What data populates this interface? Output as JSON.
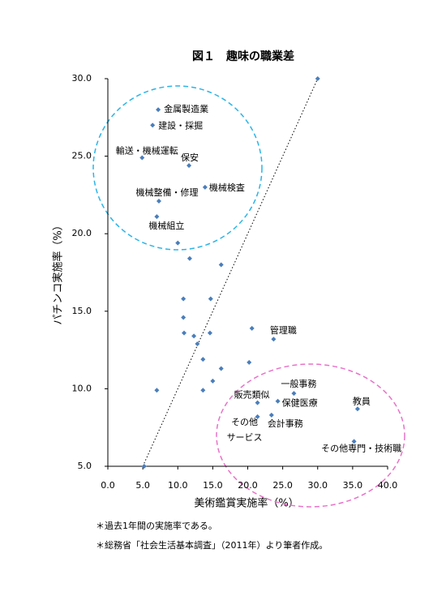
{
  "chart_data": {
    "type": "scatter",
    "title": "図１　趣味の職業差",
    "x_label": "美術鑑賞実施率（%）",
    "y_label": "パチンコ実施率（%）",
    "notes": [
      "＊過去1年間の実施率である。",
      "＊総務省「社会生活基本調査」（2011年）より筆者作成。"
    ],
    "xlim": [
      0,
      40
    ],
    "ylim": [
      5,
      30
    ],
    "xticks": [
      {
        "value": 0,
        "label": "0.0"
      },
      {
        "value": 5,
        "label": "5.0"
      },
      {
        "value": 10,
        "label": "10.0"
      },
      {
        "value": 15,
        "label": "15.0"
      },
      {
        "value": 20,
        "label": "20.0"
      },
      {
        "value": 25,
        "label": "25.0"
      },
      {
        "value": 30,
        "label": "30.0"
      },
      {
        "value": 35,
        "label": "35.0"
      },
      {
        "value": 40,
        "label": "40.0"
      }
    ],
    "yticks": [
      {
        "value": 5,
        "label": "5.0"
      },
      {
        "value": 10,
        "label": "10.0"
      },
      {
        "value": 15,
        "label": "15.0"
      },
      {
        "value": 20,
        "label": "20.0"
      },
      {
        "value": 25,
        "label": "25.0"
      },
      {
        "value": 30,
        "label": "30.0"
      }
    ],
    "color": "#4a7ebb",
    "x": [
      30.0,
      7.2,
      6.4,
      4.9,
      11.6,
      13.9,
      7.3,
      7.0,
      10.0,
      11.7,
      16.2,
      10.8,
      14.7,
      10.8,
      10.9,
      14.6,
      20.6,
      23.7,
      12.3,
      12.8,
      13.6,
      16.2,
      20.2,
      15.0,
      13.6,
      7.0,
      26.6,
      21.4,
      24.3,
      35.7,
      21.4,
      23.4,
      35.2,
      5.2
    ],
    "y": [
      30.0,
      28.0,
      27.0,
      24.9,
      24.4,
      23.0,
      22.1,
      21.1,
      19.4,
      18.4,
      18.0,
      15.8,
      15.8,
      14.6,
      13.6,
      13.6,
      13.9,
      13.2,
      13.4,
      12.9,
      11.9,
      11.3,
      11.7,
      10.5,
      9.9,
      9.9,
      9.7,
      9.1,
      9.2,
      8.7,
      8.2,
      8.3,
      6.6,
      5.0
    ],
    "labels": [
      null,
      "金属製造業",
      "建設・採掘",
      "輸送・機械運転",
      "保安",
      "機械検査",
      "機械整備・修理",
      "機械組立",
      null,
      null,
      null,
      null,
      null,
      null,
      null,
      null,
      null,
      "管理職",
      null,
      null,
      null,
      null,
      null,
      null,
      null,
      null,
      "一般事務",
      "販売類似",
      "保健医療",
      "教員",
      [
        "その他",
        "サービス"
      ],
      "会計事務",
      "その他専門・技術職",
      null
    ]
  }
}
